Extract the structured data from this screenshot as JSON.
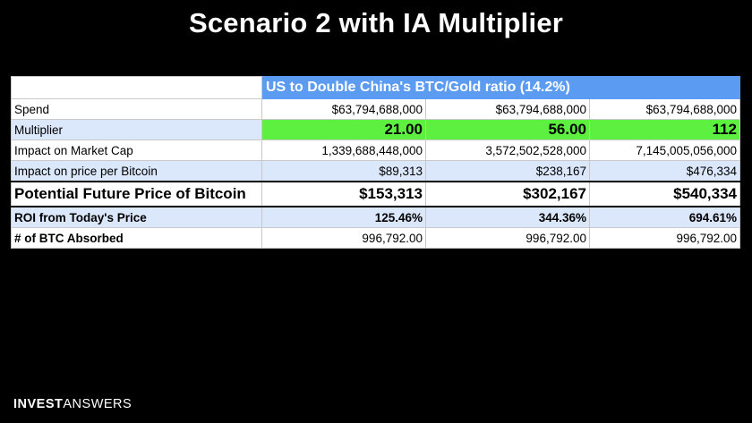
{
  "title": "Scenario 2 with IA Multiplier",
  "table": {
    "header": "US to Double China's BTC/Gold ratio (14.2%)",
    "rows": [
      {
        "label": "Spend",
        "values": [
          "$63,794,688,000",
          "$63,794,688,000",
          "$63,794,688,000"
        ]
      },
      {
        "label": "Multiplier",
        "values": [
          "21.00",
          "56.00",
          "112"
        ]
      },
      {
        "label": "Impact on Market Cap",
        "values": [
          "1,339,688,448,000",
          "3,572,502,528,000",
          "7,145,005,056,000"
        ]
      },
      {
        "label": "Impact on price per Bitcoin",
        "values": [
          "$89,313",
          "$238,167",
          "$476,334"
        ]
      },
      {
        "label": "Potential Future Price of Bitcoin",
        "values": [
          "$153,313",
          "$302,167",
          "$540,334"
        ]
      },
      {
        "label": "ROI from Today's Price",
        "values": [
          "125.46%",
          "344.36%",
          "694.61%"
        ]
      },
      {
        "label": "# of BTC Absorbed",
        "values": [
          "996,792.00",
          "996,792.00",
          "996,792.00"
        ]
      }
    ]
  },
  "brand": {
    "part1": "INVEST",
    "part2": "ANSWERS"
  },
  "colors": {
    "header_blue": "#5b9bf2",
    "highlight_green": "#5ef040",
    "row_blue": "#dbe7fa"
  }
}
